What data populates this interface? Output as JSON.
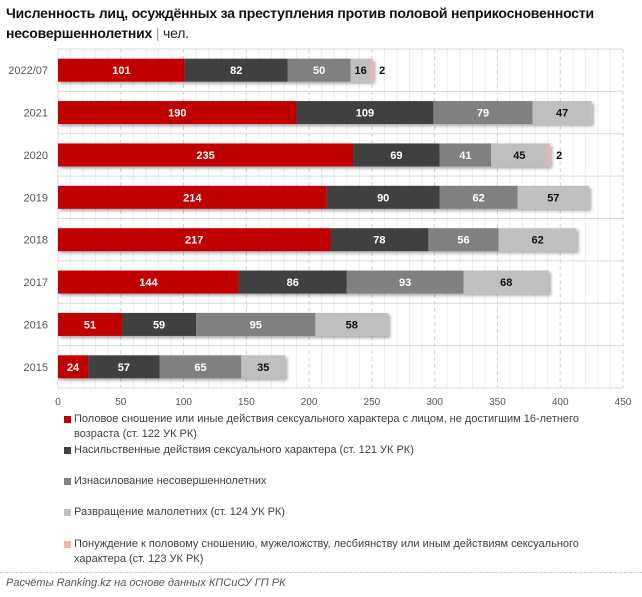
{
  "title": {
    "main": "Численность лиц, осуждённых за преступления против половой неприкосновенности несовершеннолетних",
    "separator": "|",
    "unit": "чел."
  },
  "chart_data": {
    "type": "bar",
    "orientation": "horizontal",
    "stacked": true,
    "title": "Численность лиц, осуждённых за преступления против половой неприкосновенности несовершеннолетних | чел.",
    "xlabel": "",
    "ylabel": "",
    "xlim": [
      0,
      450
    ],
    "x_ticks": [
      0,
      50,
      100,
      150,
      200,
      250,
      300,
      350,
      400,
      450
    ],
    "grid": true,
    "legend_position": "bottom",
    "categories": [
      "2022/07",
      "2021",
      "2020",
      "2019",
      "2018",
      "2017",
      "2016",
      "2015"
    ],
    "series": [
      {
        "name": "Половое сношение или иные действия сексуального характера с лицом, не достигшим 16-летнего возраста (ст. 122 УК РК)",
        "color": "#c00000",
        "label_color": "#ffffff",
        "values": [
          101,
          190,
          235,
          214,
          217,
          144,
          51,
          24
        ]
      },
      {
        "name": "Насильственные действия сексуального характера (ст. 121 УК РК)",
        "color": "#404040",
        "label_color": "#ffffff",
        "values": [
          82,
          109,
          69,
          90,
          78,
          86,
          59,
          57
        ]
      },
      {
        "name": "Изнасилование несовершеннолетних",
        "color": "#808080",
        "label_color": "#ffffff",
        "values": [
          50,
          79,
          41,
          62,
          56,
          93,
          95,
          65
        ]
      },
      {
        "name": "Развращение малолетних (ст. 124 УК РК)",
        "color": "#bfbfbf",
        "label_color": "#111111",
        "values": [
          16,
          47,
          45,
          57,
          62,
          68,
          58,
          35
        ]
      },
      {
        "name": "Понуждение к половому сношению, мужеложству, лесбиянству или иным действиям сексуального характера (ст. 123 УК РК)",
        "color": "#f4b0ab",
        "label_color": "#111111",
        "values": [
          2,
          0,
          2,
          0,
          0,
          0,
          0,
          0
        ]
      }
    ]
  },
  "legend": [
    {
      "label": "Половое сношение или иные действия сексуального характера с лицом, не достигшим 16-летнего возраста (ст. 122 УК РК)",
      "color": "#c00000"
    },
    {
      "label": "Насильственные действия сексуального характера (ст. 121 УК РК)",
      "color": "#404040"
    },
    {
      "label": "Изнасилование несовершеннолетних",
      "color": "#808080"
    },
    {
      "label": "Развращение малолетних (ст. 124 УК РК)",
      "color": "#bfbfbf"
    },
    {
      "label": "Понуждение к половому сношению, мужеложству, лесбиянству или иным действиям сексуального характера (ст. 123 УК РК)",
      "color": "#f4b0ab"
    }
  ],
  "source": "Расчёты Ranking.kz на основе данных КПСиСУ ГП РК"
}
